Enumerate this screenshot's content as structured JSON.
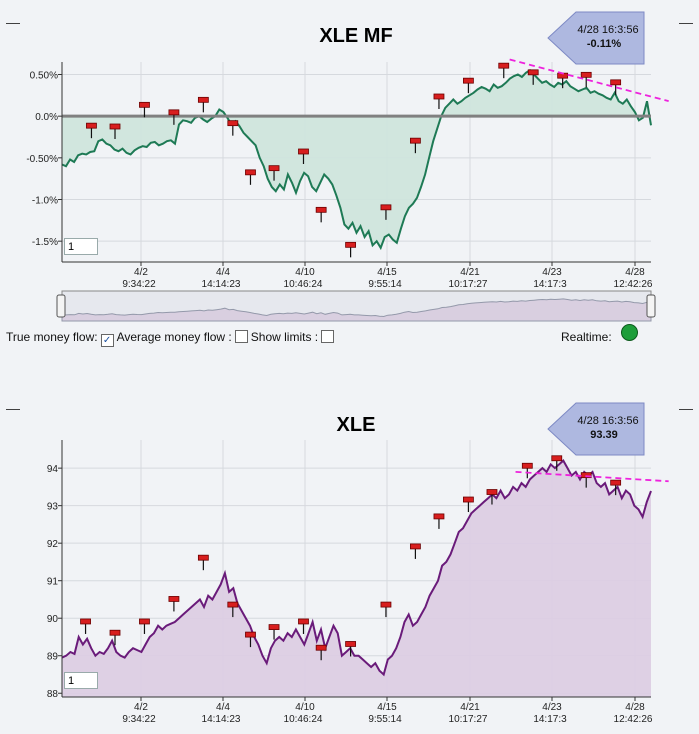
{
  "chart_data": [
    {
      "type": "area",
      "title": "XLE MF",
      "callout": {
        "date": "4/28 16:3:56",
        "value": "-0.11%"
      },
      "y_ticks": [
        "0.50%",
        "0.0%",
        "-0.50%",
        "-1.0%",
        "-1.5%"
      ],
      "y_tick_values": [
        0.5,
        0.0,
        -0.5,
        -1.0,
        -1.5
      ],
      "ylim": [
        -1.75,
        0.65
      ],
      "x_ticks": [
        {
          "date": "4/2",
          "time": "9:34:22"
        },
        {
          "date": "4/4",
          "time": "14:14:23"
        },
        {
          "date": "4/10",
          "time": "10:46:24"
        },
        {
          "date": "4/15",
          "time": "9:55:14"
        },
        {
          "date": "4/21",
          "time": "10:17:27"
        },
        {
          "date": "4/23",
          "time": "14:17:3"
        },
        {
          "date": "4/28",
          "time": "12:42:26"
        }
      ],
      "color": "#1e7a55",
      "fill": "#cfe5dc",
      "values": [
        -0.58,
        -0.6,
        -0.52,
        -0.55,
        -0.47,
        -0.45,
        -0.46,
        -0.43,
        -0.42,
        -0.3,
        -0.28,
        -0.33,
        -0.35,
        -0.4,
        -0.42,
        -0.39,
        -0.44,
        -0.46,
        -0.41,
        -0.38,
        -0.36,
        -0.37,
        -0.32,
        -0.31,
        -0.35,
        -0.33,
        -0.3,
        -0.29,
        -0.33,
        -0.1,
        -0.05,
        -0.06,
        -0.08,
        -0.02,
        0.0,
        -0.04,
        -0.07,
        -0.03,
        0.0,
        0.08,
        0.05,
        -0.02,
        -0.1,
        -0.06,
        -0.12,
        -0.2,
        -0.25,
        -0.3,
        -0.35,
        -0.5,
        -0.6,
        -0.75,
        -0.85,
        -0.9,
        -0.82,
        -0.88,
        -0.7,
        -0.8,
        -0.92,
        -0.78,
        -0.68,
        -0.72,
        -0.85,
        -0.9,
        -0.8,
        -0.7,
        -0.75,
        -0.82,
        -0.95,
        -1.1,
        -1.3,
        -1.35,
        -1.28,
        -1.4,
        -1.32,
        -1.45,
        -1.38,
        -1.55,
        -1.5,
        -1.58,
        -1.45,
        -1.42,
        -1.48,
        -1.52,
        -1.35,
        -1.2,
        -1.1,
        -1.05,
        -0.98,
        -0.85,
        -0.7,
        -0.5,
        -0.3,
        -0.15,
        0.0,
        0.1,
        0.15,
        0.2,
        0.15,
        0.18,
        0.22,
        0.25,
        0.28,
        0.32,
        0.35,
        0.33,
        0.3,
        0.38,
        0.34,
        0.36,
        0.4,
        0.45,
        0.48,
        0.5,
        0.47,
        0.52,
        0.55,
        0.5,
        0.45,
        0.4,
        0.42,
        0.38,
        0.35,
        0.4,
        0.38,
        0.42,
        0.36,
        0.33,
        0.3,
        0.32,
        0.34,
        0.28,
        0.3,
        0.27,
        0.25,
        0.22,
        0.2,
        0.28,
        0.18,
        0.15,
        0.2,
        0.12,
        0.05,
        -0.05,
        -0.02,
        0.18,
        -0.11
      ],
      "markers": [
        [
          0.05,
          -0.12
        ],
        [
          0.09,
          -0.13
        ],
        [
          0.14,
          0.13
        ],
        [
          0.19,
          0.04
        ],
        [
          0.24,
          0.19
        ],
        [
          0.29,
          -0.09
        ],
        [
          0.32,
          -0.68
        ],
        [
          0.36,
          -0.63
        ],
        [
          0.41,
          -0.43
        ],
        [
          0.44,
          -1.13
        ],
        [
          0.49,
          -1.55
        ],
        [
          0.55,
          -1.1
        ],
        [
          0.6,
          -0.3
        ],
        [
          0.64,
          0.23
        ],
        [
          0.69,
          0.42
        ],
        [
          0.75,
          0.6
        ],
        [
          0.8,
          0.52
        ],
        [
          0.85,
          0.48
        ],
        [
          0.89,
          0.49
        ],
        [
          0.94,
          0.4
        ]
      ],
      "trendline": [
        [
          0.76,
          0.68
        ],
        [
          1.03,
          0.18
        ]
      ]
    },
    {
      "type": "area",
      "title": "XLE",
      "callout": {
        "date": "4/28 16:3:56",
        "value": "93.39"
      },
      "y_ticks": [
        "94",
        "93",
        "92",
        "91",
        "90",
        "89",
        "88"
      ],
      "y_tick_values": [
        94,
        93,
        92,
        91,
        90,
        89,
        88
      ],
      "ylim": [
        87.9,
        94.75
      ],
      "x_ticks": [
        {
          "date": "4/2",
          "time": "9:34:22"
        },
        {
          "date": "4/4",
          "time": "14:14:23"
        },
        {
          "date": "4/10",
          "time": "10:46:24"
        },
        {
          "date": "4/15",
          "time": "9:55:14"
        },
        {
          "date": "4/21",
          "time": "10:17:27"
        },
        {
          "date": "4/23",
          "time": "14:17:3"
        },
        {
          "date": "4/28",
          "time": "12:42:26"
        }
      ],
      "color": "#6a1b7a",
      "fill": "#dccde3",
      "values": [
        88.95,
        89.0,
        89.1,
        89.05,
        89.5,
        89.3,
        89.45,
        89.2,
        89.0,
        89.1,
        89.05,
        89.2,
        89.4,
        89.1,
        89.0,
        88.95,
        89.1,
        89.2,
        89.15,
        89.1,
        89.3,
        89.5,
        89.6,
        89.8,
        89.7,
        89.8,
        89.85,
        89.9,
        90.0,
        90.1,
        90.2,
        90.3,
        90.4,
        90.5,
        90.3,
        90.6,
        90.5,
        90.7,
        90.9,
        91.2,
        90.7,
        90.8,
        90.4,
        90.2,
        90.0,
        89.8,
        89.5,
        89.3,
        89.0,
        88.8,
        89.2,
        89.4,
        89.5,
        89.4,
        89.6,
        89.5,
        89.7,
        89.5,
        89.3,
        89.6,
        89.9,
        89.4,
        89.7,
        89.2,
        89.5,
        89.8,
        89.6,
        89.0,
        89.1,
        89.2,
        89.0,
        89.0,
        88.9,
        88.8,
        88.7,
        88.8,
        88.6,
        88.5,
        88.9,
        89.0,
        89.2,
        89.5,
        89.9,
        90.1,
        89.8,
        89.9,
        90.1,
        90.3,
        90.6,
        90.8,
        91.0,
        91.4,
        91.5,
        91.7,
        92.0,
        92.3,
        92.4,
        92.6,
        92.8,
        92.9,
        93.0,
        93.1,
        93.2,
        93.3,
        93.2,
        93.4,
        93.2,
        93.3,
        93.5,
        93.4,
        93.6,
        93.5,
        93.7,
        93.8,
        93.9,
        94.0,
        93.9,
        94.1,
        94.0,
        94.1,
        94.2,
        94.0,
        93.8,
        93.9,
        93.7,
        93.9,
        93.8,
        93.9,
        93.6,
        93.5,
        93.6,
        93.3,
        93.4,
        93.5,
        93.2,
        93.4,
        93.3,
        93.0,
        92.9,
        92.7,
        93.1,
        93.39
      ],
      "markers": [
        [
          0.04,
          89.9
        ],
        [
          0.09,
          89.6
        ],
        [
          0.14,
          89.9
        ],
        [
          0.19,
          90.5
        ],
        [
          0.24,
          91.6
        ],
        [
          0.29,
          90.35
        ],
        [
          0.32,
          89.55
        ],
        [
          0.36,
          89.75
        ],
        [
          0.41,
          89.9
        ],
        [
          0.44,
          89.2
        ],
        [
          0.49,
          89.3
        ],
        [
          0.55,
          90.35
        ],
        [
          0.6,
          91.9
        ],
        [
          0.64,
          92.7
        ],
        [
          0.69,
          93.15
        ],
        [
          0.73,
          93.35
        ],
        [
          0.79,
          94.05
        ],
        [
          0.84,
          94.25
        ],
        [
          0.89,
          93.8
        ],
        [
          0.94,
          93.6
        ]
      ],
      "trendline": [
        [
          0.77,
          93.9
        ],
        [
          1.03,
          93.65
        ]
      ]
    }
  ],
  "inputs": {
    "mf_period": "1",
    "price_period": "1"
  },
  "controls": {
    "true_money_flow_label": "True money flow:",
    "average_money_flow_label": "Average money flow :",
    "show_limits_label": "Show limits :",
    "realtime_label": "Realtime:",
    "checked_glyph": "✓",
    "realtime_color": "#1e9e3a"
  },
  "window_minimize": [
    "—",
    "—",
    "—",
    "—"
  ]
}
